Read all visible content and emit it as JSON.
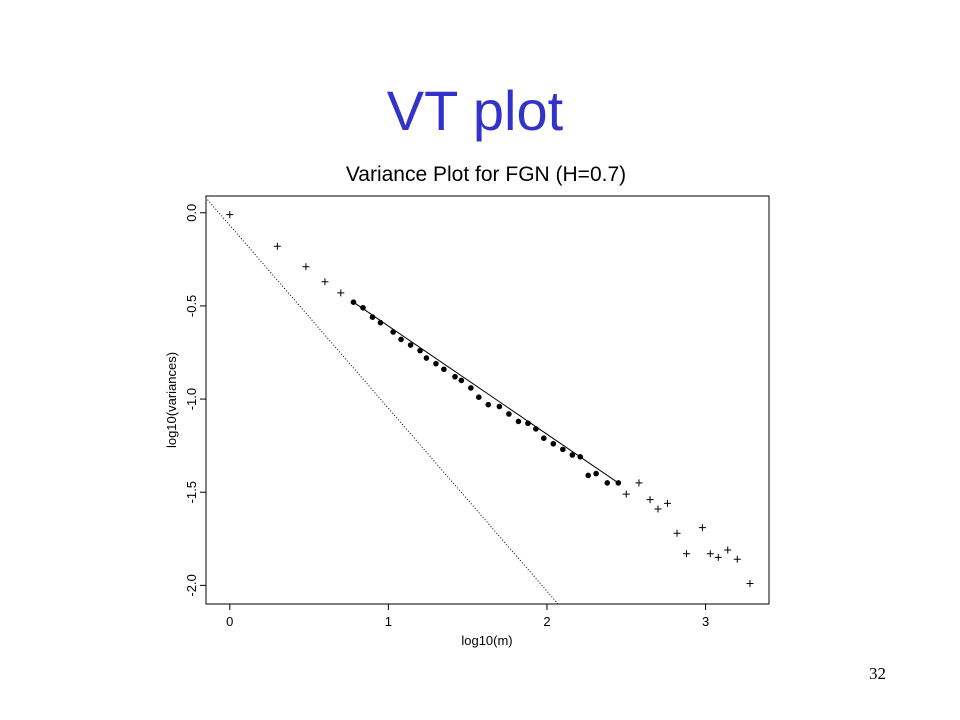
{
  "slide": {
    "title": "VT plot",
    "page_number": "32"
  },
  "colors": {
    "title": "#3333cc",
    "ink": "#000000"
  },
  "chart_data": {
    "type": "scatter",
    "title": "Variance Plot for FGN (H=0.7)",
    "xlabel": "log10(m)",
    "ylabel": "log10(variances)",
    "xlim": [
      -0.15,
      3.4
    ],
    "ylim": [
      -2.1,
      0.09
    ],
    "xticks": [
      0,
      1,
      2,
      3
    ],
    "yticks": [
      0.0,
      -0.5,
      -1.0,
      -1.5,
      -2.0
    ],
    "xtick_labels": [
      "0",
      "1",
      "2",
      "3"
    ],
    "ytick_labels": [
      "0.0",
      "-0.5",
      "-1.0",
      "-1.5",
      "-2.0"
    ],
    "grid": false,
    "series": [
      {
        "marker": "plus",
        "x": [
          0.0,
          0.3,
          0.48,
          0.6,
          0.7,
          2.5,
          2.58,
          2.65,
          2.7,
          2.76,
          2.82,
          2.88,
          2.98,
          3.03,
          3.08,
          3.14,
          3.2,
          3.28
        ],
        "y": [
          -0.01,
          -0.18,
          -0.29,
          -0.37,
          -0.43,
          -1.51,
          -1.45,
          -1.54,
          -1.59,
          -1.56,
          -1.72,
          -1.83,
          -1.69,
          -1.83,
          -1.85,
          -1.81,
          -1.86,
          -1.99
        ]
      },
      {
        "marker": "dot",
        "x": [
          0.78,
          0.84,
          0.9,
          0.95,
          1.03,
          1.08,
          1.14,
          1.2,
          1.24,
          1.3,
          1.35,
          1.42,
          1.46,
          1.52,
          1.57,
          1.63,
          1.7,
          1.76,
          1.82,
          1.88,
          1.93,
          1.98,
          2.04,
          2.1,
          2.16,
          2.21,
          2.26,
          2.31,
          2.38,
          2.45
        ],
        "y": [
          -0.48,
          -0.51,
          -0.56,
          -0.59,
          -0.64,
          -0.68,
          -0.71,
          -0.74,
          -0.78,
          -0.81,
          -0.84,
          -0.88,
          -0.9,
          -0.94,
          -0.99,
          -1.03,
          -1.04,
          -1.08,
          -1.12,
          -1.13,
          -1.16,
          -1.21,
          -1.24,
          -1.27,
          -1.3,
          -1.31,
          -1.41,
          -1.4,
          -1.45,
          -1.45
        ]
      }
    ],
    "lines": [
      {
        "style": "solid",
        "x": [
          0.78,
          2.45
        ],
        "y": [
          -0.48,
          -1.45
        ]
      },
      {
        "style": "dotted",
        "x": [
          -0.14,
          2.07
        ],
        "y": [
          0.07,
          -2.1
        ]
      }
    ]
  }
}
